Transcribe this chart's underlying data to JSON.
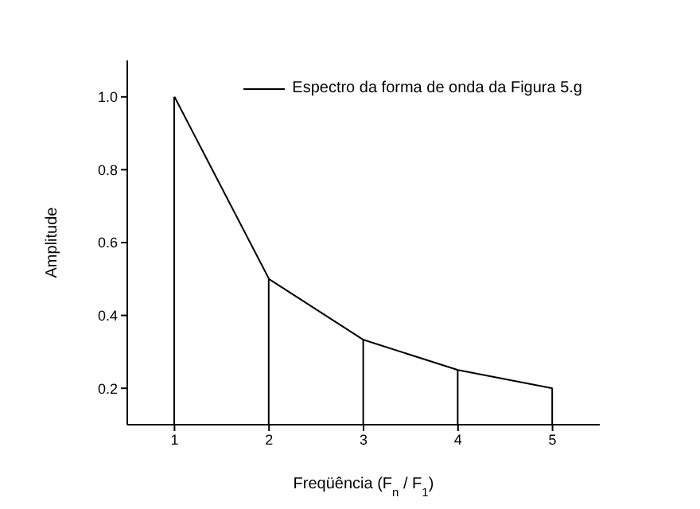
{
  "chart_data": {
    "type": "line",
    "xlabel": "Freqüência (F$_{n}$ / F$_{1}$)",
    "ylabel": "Amplitude",
    "x": [
      1,
      2,
      3,
      4,
      5
    ],
    "series": [
      {
        "name": "Espectro da forma de onda da Figura 5.g",
        "color": "#000000",
        "values": [
          1.0,
          0.5,
          0.333,
          0.25,
          0.2
        ]
      },
      {
        "type": "bar",
        "color": "#000000",
        "values": [
          1.0,
          0.5,
          0.333,
          0.25,
          0.2
        ]
      }
    ],
    "marker": "none",
    "line_style": "solid",
    "xlim": [
      0.5,
      5.5
    ],
    "xticks": [
      1,
      2,
      3,
      4,
      5
    ],
    "ylim": [
      0.1,
      1.1
    ],
    "yticks": [
      {
        "value": 0.2,
        "label": "0.2"
      },
      {
        "value": 0.4,
        "label": "0.4"
      },
      {
        "value": 0.6,
        "label": "0.6"
      },
      {
        "value": 0.8,
        "label": "0.8"
      },
      {
        "value": 1.0,
        "label": "1.0"
      }
    ],
    "legend": "top right"
  }
}
